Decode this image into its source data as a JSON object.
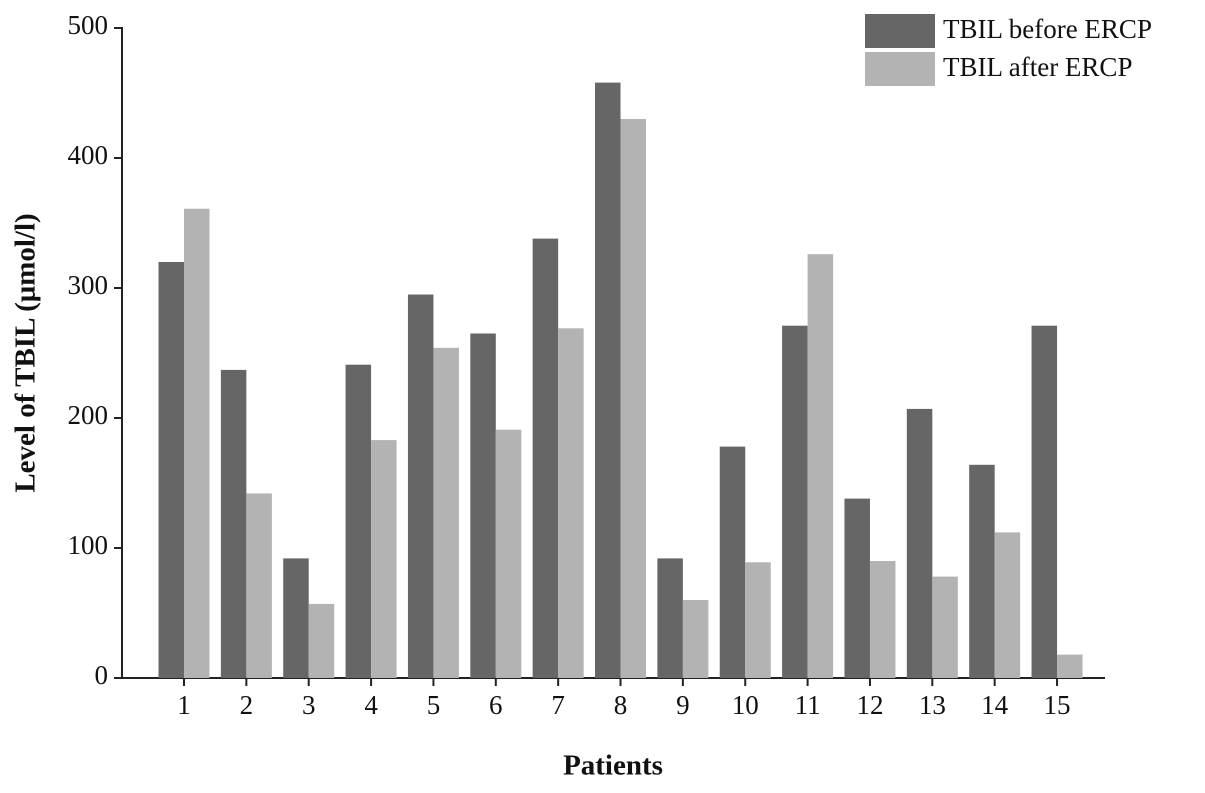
{
  "chart_data": {
    "type": "bar",
    "x_label": "Patients",
    "y_label": "Level of TBIL (μmol/l)",
    "categories": [
      "1",
      "2",
      "3",
      "4",
      "5",
      "6",
      "7",
      "8",
      "9",
      "10",
      "11",
      "12",
      "13",
      "14",
      "15"
    ],
    "series": [
      {
        "name": "TBIL before ERCP",
        "color": "#666666",
        "values": [
          320,
          237,
          92,
          241,
          295,
          265,
          338,
          458,
          92,
          178,
          271,
          138,
          207,
          164,
          271
        ]
      },
      {
        "name": "TBIL after ERCP",
        "color": "#b3b3b3",
        "values": [
          361,
          142,
          57,
          183,
          254,
          191,
          269,
          430,
          60,
          89,
          326,
          90,
          78,
          112,
          18
        ]
      }
    ],
    "ylim": [
      0,
      500
    ],
    "yticks": [
      0,
      100,
      200,
      300,
      400,
      500
    ],
    "legend": "top-right",
    "grid": false
  }
}
